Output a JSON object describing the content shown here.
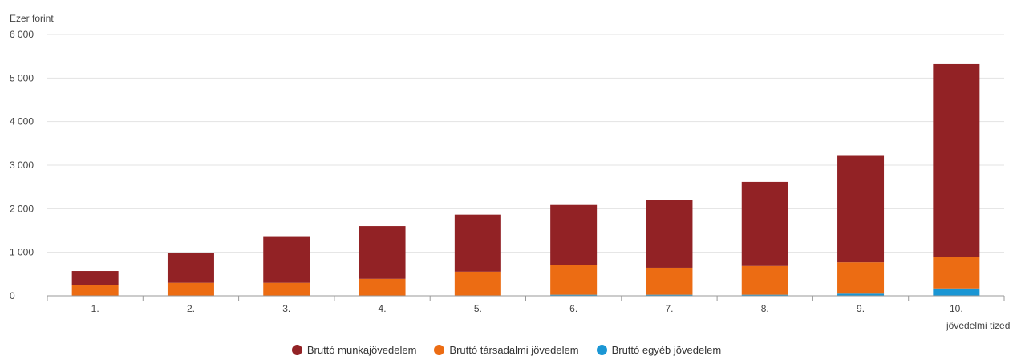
{
  "chart_data": {
    "type": "bar",
    "stacked": true,
    "ylabel": "Ezer forint",
    "xlabel": "jövedelmi tized",
    "ylim": [
      0,
      6000
    ],
    "yticks": [
      0,
      1000,
      2000,
      3000,
      4000,
      5000,
      6000
    ],
    "ytick_labels": [
      "0",
      "1 000",
      "2 000",
      "3 000",
      "4 000",
      "5 000",
      "6 000"
    ],
    "categories": [
      "1.",
      "2.",
      "3.",
      "4.",
      "5.",
      "6.",
      "7.",
      "8.",
      "9.",
      "10."
    ],
    "grid": true,
    "legend_position": "bottom",
    "series": [
      {
        "name": "Bruttó egyéb jövedelem",
        "color": "#1a96d4",
        "values": [
          5,
          5,
          5,
          5,
          10,
          25,
          25,
          25,
          50,
          170
        ]
      },
      {
        "name": "Bruttó társadalmi jövedelem",
        "color": "#ec6c13",
        "values": [
          245,
          295,
          295,
          385,
          545,
          680,
          620,
          660,
          720,
          730
        ]
      },
      {
        "name": "Bruttó munkajövedelem",
        "color": "#922225",
        "values": [
          320,
          690,
          1070,
          1210,
          1310,
          1380,
          1560,
          1930,
          2460,
          4420
        ]
      }
    ],
    "legend_order": [
      2,
      1,
      0
    ]
  }
}
